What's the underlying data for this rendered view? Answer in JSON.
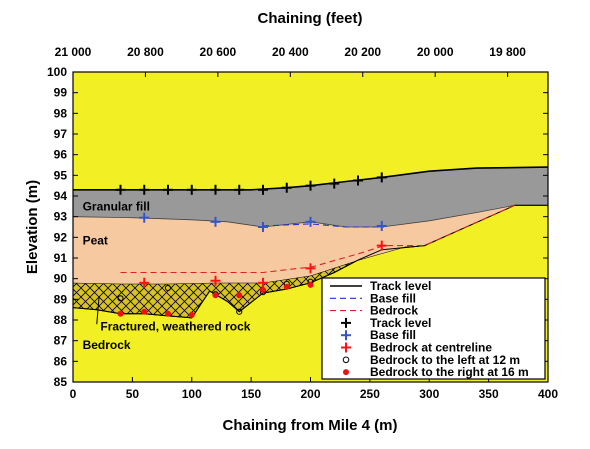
{
  "chart_data": {
    "type": "line",
    "xlabel": "Chaining from Mile 4 (m)",
    "ylabel": "Elevation (m)",
    "top_xlabel": "Chaining (feet)",
    "xlim": [
      0,
      400
    ],
    "ylim": [
      85,
      100
    ],
    "x_ticks": [
      0,
      50,
      100,
      150,
      200,
      250,
      300,
      350,
      400
    ],
    "y_ticks": [
      85,
      86,
      87,
      88,
      89,
      90,
      91,
      92,
      93,
      94,
      95,
      96,
      97,
      98,
      99,
      100
    ],
    "x_tick_labels": [
      "0",
      "50",
      "100",
      "150",
      "200",
      "250",
      "300",
      "350",
      "400"
    ],
    "y_tick_labels": [
      "85",
      "86",
      "87",
      "88",
      "89",
      "90",
      "91",
      "92",
      "93",
      "94",
      "95",
      "96",
      "97",
      "98",
      "99",
      "100"
    ],
    "top_ticks": [
      {
        "x": 0,
        "label": "21 000"
      },
      {
        "x": 61,
        "label": "20 800"
      },
      {
        "x": 122,
        "label": "20 600"
      },
      {
        "x": 183,
        "label": "20 400"
      },
      {
        "x": 244,
        "label": "20 200"
      },
      {
        "x": 305,
        "label": "20 000"
      },
      {
        "x": 366,
        "label": "19 800"
      }
    ],
    "layers": [
      {
        "name": "Granular fill",
        "color": "#999999"
      },
      {
        "name": "Peat",
        "color": "#f7c9a0"
      },
      {
        "name": "Fractured, weathered rock",
        "color": "#d8c228",
        "hatch": true
      },
      {
        "name": "Bedrock",
        "color": "#f2ef24"
      }
    ],
    "surfaces": {
      "ground_top": [
        [
          0,
          94.3
        ],
        [
          150,
          94.3
        ],
        [
          180,
          94.4
        ],
        [
          200,
          94.5
        ],
        [
          230,
          94.7
        ],
        [
          260,
          94.9
        ],
        [
          300,
          95.2
        ],
        [
          340,
          95.35
        ],
        [
          400,
          95.4
        ]
      ],
      "fill_base": [
        [
          0,
          93.0
        ],
        [
          50,
          92.95
        ],
        [
          100,
          92.85
        ],
        [
          130,
          92.75
        ],
        [
          160,
          92.5
        ],
        [
          200,
          92.75
        ],
        [
          230,
          92.5
        ],
        [
          260,
          92.5
        ],
        [
          300,
          92.8
        ],
        [
          340,
          93.2
        ],
        [
          372,
          93.55
        ],
        [
          400,
          93.55
        ]
      ],
      "weathered_top": [
        [
          0,
          89.8
        ],
        [
          40,
          89.75
        ],
        [
          80,
          89.75
        ],
        [
          120,
          89.8
        ],
        [
          160,
          89.8
        ],
        [
          200,
          90.15
        ],
        [
          240,
          90.9
        ],
        [
          280,
          91.55
        ],
        [
          296,
          91.6
        ],
        [
          372,
          93.55
        ]
      ],
      "bedrock_top": [
        [
          0,
          88.6
        ],
        [
          20,
          88.5
        ],
        [
          40,
          88.3
        ],
        [
          60,
          88.3
        ],
        [
          80,
          88.2
        ],
        [
          100,
          88.1
        ],
        [
          115,
          89.4
        ],
        [
          130,
          88.9
        ],
        [
          140,
          88.4
        ],
        [
          160,
          89.3
        ],
        [
          180,
          89.5
        ],
        [
          200,
          89.8
        ],
        [
          220,
          90.3
        ],
        [
          240,
          90.9
        ],
        [
          260,
          91.4
        ],
        [
          296,
          91.6
        ],
        [
          372,
          93.55
        ],
        [
          400,
          93.55
        ]
      ]
    },
    "series": [
      {
        "name": "Track level",
        "style": "line",
        "color": "#000000",
        "points": [
          [
            0,
            94.3
          ],
          [
            150,
            94.3
          ],
          [
            180,
            94.4
          ],
          [
            200,
            94.5
          ],
          [
            230,
            94.7
          ],
          [
            260,
            94.9
          ],
          [
            300,
            95.2
          ],
          [
            340,
            95.35
          ],
          [
            400,
            95.4
          ]
        ]
      },
      {
        "name": "Base fill",
        "style": "dashed",
        "color": "#2233cc",
        "points": [
          [
            160,
            92.55
          ],
          [
            200,
            92.65
          ],
          [
            230,
            92.5
          ],
          [
            262,
            92.5
          ]
        ]
      },
      {
        "name": "Bedrock",
        "style": "dashed",
        "color": "#dd2222",
        "points": [
          [
            40,
            90.3
          ],
          [
            160,
            90.3
          ],
          [
            190,
            90.5
          ],
          [
            200,
            90.55
          ],
          [
            240,
            91.2
          ],
          [
            262,
            91.6
          ],
          [
            296,
            91.6
          ],
          [
            372,
            93.55
          ]
        ]
      },
      {
        "name": "Track level",
        "style": "marker-plus",
        "color": "#000000",
        "points": [
          [
            40,
            94.3
          ],
          [
            60,
            94.3
          ],
          [
            80,
            94.3
          ],
          [
            100,
            94.3
          ],
          [
            120,
            94.3
          ],
          [
            140,
            94.3
          ],
          [
            160,
            94.3
          ],
          [
            180,
            94.4
          ],
          [
            200,
            94.5
          ],
          [
            220,
            94.6
          ],
          [
            240,
            94.75
          ],
          [
            260,
            94.9
          ]
        ]
      },
      {
        "name": "Base fill",
        "style": "marker-plus",
        "color": "#3355cc",
        "points": [
          [
            60,
            92.95
          ],
          [
            120,
            92.75
          ],
          [
            160,
            92.5
          ],
          [
            200,
            92.75
          ],
          [
            260,
            92.55
          ]
        ]
      },
      {
        "name": "Bedrock at centreline",
        "style": "marker-plus",
        "color": "#ff1111",
        "points": [
          [
            60,
            89.8
          ],
          [
            120,
            89.9
          ],
          [
            160,
            89.8
          ],
          [
            200,
            90.5
          ],
          [
            260,
            91.6
          ]
        ]
      },
      {
        "name": "Bedrock to the left at 12 m",
        "style": "marker-circle-open",
        "color": "#000000",
        "points": [
          [
            40,
            89.05
          ],
          [
            80,
            89.55
          ],
          [
            120,
            89.25
          ],
          [
            140,
            88.4
          ],
          [
            160,
            89.35
          ],
          [
            180,
            89.75
          ],
          [
            200,
            89.85
          ]
        ]
      },
      {
        "name": "Bedrock to the right at 16 m",
        "style": "marker-circle-filled",
        "color": "#ee1111",
        "points": [
          [
            40,
            88.3
          ],
          [
            60,
            88.4
          ],
          [
            80,
            88.3
          ],
          [
            100,
            88.25
          ],
          [
            120,
            89.2
          ],
          [
            140,
            89.2
          ],
          [
            160,
            89.45
          ],
          [
            180,
            89.6
          ],
          [
            200,
            89.7
          ]
        ]
      }
    ],
    "regions": [
      {
        "label": "Granular fill",
        "at": [
          3,
          93.3
        ]
      },
      {
        "label": "Peat",
        "at": [
          3,
          91.65
        ]
      },
      {
        "label": "Fractured, weathered rock",
        "at": [
          18,
          87.5
        ]
      },
      {
        "label": "Bedrock",
        "at": [
          3,
          86.6
        ]
      }
    ],
    "annotation": {
      "label_ref": "Fractured, weathered rock",
      "from": [
        20,
        87.7
      ],
      "to": [
        22,
        89.15
      ]
    },
    "legend": {
      "placement": "bottom-right",
      "entries": [
        {
          "label": "Track level",
          "symbol": "line",
          "color": "#000000"
        },
        {
          "label": "Base fill",
          "symbol": "dashed",
          "color": "#2233cc"
        },
        {
          "label": "Bedrock",
          "symbol": "dashed",
          "color": "#dd2222"
        },
        {
          "label": "Track level",
          "symbol": "plus",
          "color": "#000000"
        },
        {
          "label": "Base fill",
          "symbol": "plus",
          "color": "#3355cc"
        },
        {
          "label": "Bedrock at centreline",
          "symbol": "plus",
          "color": "#ff1111"
        },
        {
          "label": "Bedrock to the left at 12 m",
          "symbol": "circle-open",
          "color": "#000000"
        },
        {
          "label": "Bedrock to the right at 16 m",
          "symbol": "circle-filled",
          "color": "#ee1111"
        }
      ]
    }
  }
}
